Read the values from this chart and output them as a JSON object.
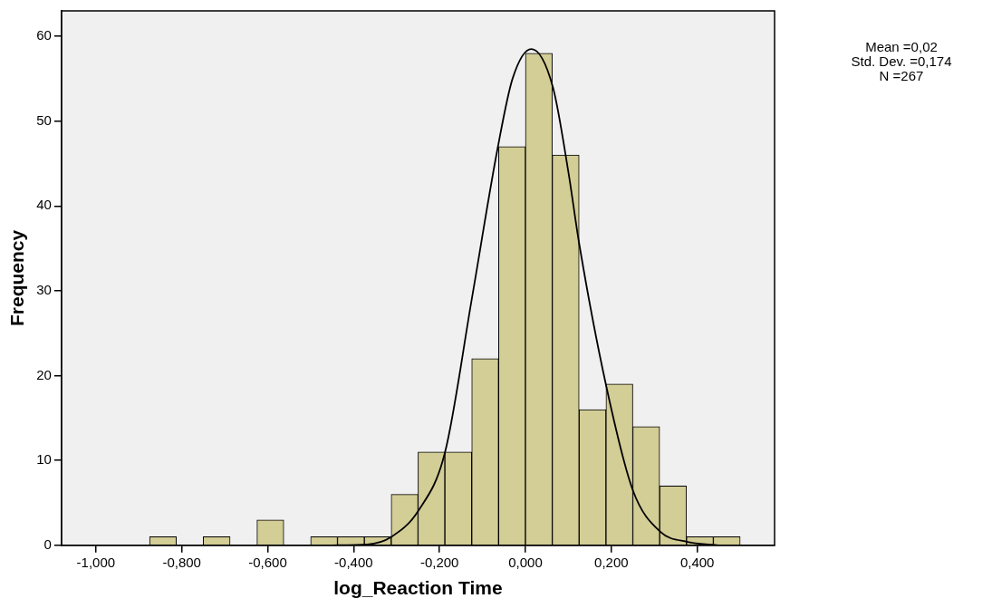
{
  "chart_data": {
    "type": "histogram",
    "xlabel": "log_Reaction Time",
    "ylabel": "Frequency",
    "bins": [
      -0.875,
      -0.8125,
      -0.75,
      -0.6875,
      -0.625,
      -0.5625,
      -0.5,
      -0.4375,
      -0.375,
      -0.3125,
      -0.25,
      -0.1875,
      -0.125,
      -0.0625,
      0,
      0.0625,
      0.125,
      0.1875,
      0.25,
      0.3125,
      0.375,
      0.4375,
      0.5
    ],
    "values": [
      1,
      0,
      1,
      0,
      3,
      0,
      1,
      1,
      1,
      6,
      11,
      11,
      22,
      47,
      58,
      46,
      16,
      19,
      14,
      7,
      1,
      1
    ],
    "color": "#d3cd96",
    "series": [
      {
        "type": "line",
        "color": "#000000",
        "x": [
          -0.45,
          -0.368,
          -0.312,
          -0.249,
          -0.187,
          -0.125,
          -0.064,
          -0.03,
          0.014,
          0.064,
          0.1,
          0.125,
          0.188,
          0.25,
          0.314,
          0.378,
          0.45
        ],
        "values": [
          0,
          0.1,
          1,
          4.1,
          11,
          29,
          47,
          55,
          58.5,
          54,
          44,
          35.6,
          18.8,
          6.5,
          1.6,
          0.4,
          0
        ]
      }
    ],
    "xlim": [
      -1.08,
      0.58
    ],
    "ylim": [
      0,
      63
    ],
    "xticks": [
      {
        "value": -1,
        "label": "-1,000"
      },
      {
        "value": -0.8,
        "label": "-0,800"
      },
      {
        "value": -0.6,
        "label": "-0,600"
      },
      {
        "value": -0.4,
        "label": "-0,400"
      },
      {
        "value": -0.2,
        "label": "-0,200"
      },
      {
        "value": 0,
        "label": "0,000"
      },
      {
        "value": 0.2,
        "label": "0,200"
      },
      {
        "value": 0.4,
        "label": "0,400"
      }
    ],
    "yticks": [
      0,
      10,
      20,
      30,
      40,
      50,
      60
    ],
    "annotations": [
      "Mean =0,02",
      "Std. Dev. =0,174",
      "N =267"
    ],
    "grid": false,
    "legend": false
  }
}
